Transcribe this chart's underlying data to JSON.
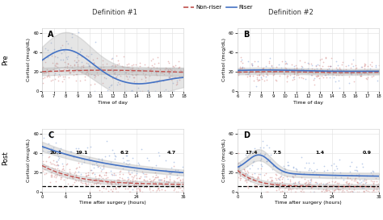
{
  "title_left": "Definition #1",
  "title_right": "Definition #2",
  "legend_labels": [
    "Non-riser",
    "Riser"
  ],
  "legend_colors_line": [
    "#c0504d",
    "#4472c4"
  ],
  "legend_linestyles": [
    "--",
    "-"
  ],
  "panel_labels": [
    "A",
    "B",
    "C",
    "D"
  ],
  "pre_xlabel": "Time of day",
  "post_xlabel": "Time after surgery (hours)",
  "ylabel": "Cortisol (mcg/dL)",
  "pre_xlim": [
    6,
    18
  ],
  "pre_xticks": [
    6,
    7,
    8,
    9,
    10,
    11,
    12,
    13,
    14,
    15,
    16,
    17,
    18
  ],
  "pre_ylim": [
    0,
    65
  ],
  "pre_yticks": [
    0,
    20,
    40,
    60
  ],
  "post_xlim": [
    0,
    36
  ],
  "post_xticks": [
    0,
    6,
    12,
    24,
    36
  ],
  "post_ylim": [
    0,
    65
  ],
  "post_yticks": [
    0,
    20,
    40,
    60
  ],
  "non_riser_color": "#c0504d",
  "riser_color": "#4472c4",
  "scatter_alpha": 0.35,
  "scatter_size": 1.5,
  "ci_color": "#aaaaaa",
  "ci_alpha": 0.3,
  "dashed_line_y": 5.5,
  "annotations_C": [
    [
      "20.1",
      3.5,
      38
    ],
    [
      "19.1",
      10,
      38
    ],
    [
      "6.2",
      21,
      38
    ],
    [
      "4.7",
      33,
      38
    ]
  ],
  "annotations_D": [
    [
      "17.4",
      3.5,
      38
    ],
    [
      "7.5",
      10,
      38
    ],
    [
      "1.4",
      21,
      38
    ],
    [
      "0.9",
      33,
      38
    ]
  ],
  "pre_label": "Pre",
  "post_label": "Post",
  "background_color": "#ffffff",
  "grid_color": "#e0e0e0"
}
